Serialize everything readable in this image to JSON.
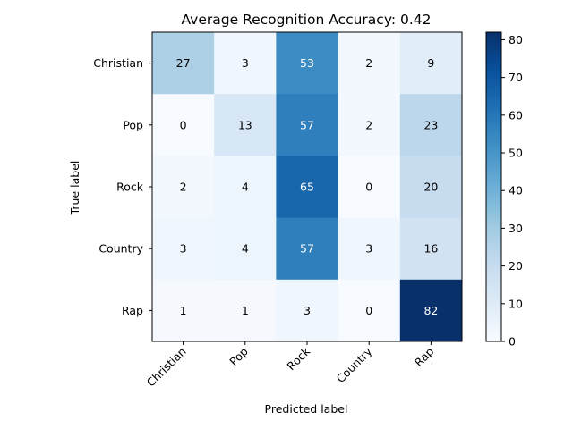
{
  "chart_data": {
    "type": "heatmap",
    "title": "Average Recognition Accuracy: 0.42",
    "xlabel": "Predicted label",
    "ylabel": "True label",
    "x_categories": [
      "Christian",
      "Pop",
      "Rock",
      "Country",
      "Rap"
    ],
    "y_categories": [
      "Christian",
      "Pop",
      "Rock",
      "Country",
      "Rap"
    ],
    "values": [
      [
        27,
        3,
        53,
        2,
        9
      ],
      [
        0,
        13,
        57,
        2,
        23
      ],
      [
        2,
        4,
        65,
        0,
        20
      ],
      [
        3,
        4,
        57,
        3,
        16
      ],
      [
        1,
        1,
        3,
        0,
        82
      ]
    ],
    "colormap": "Blues",
    "color_range": [
      0,
      82
    ],
    "colorbar_ticks": [
      "0",
      "10",
      "20",
      "30",
      "40",
      "50",
      "60",
      "70",
      "80"
    ],
    "grid": false
  }
}
